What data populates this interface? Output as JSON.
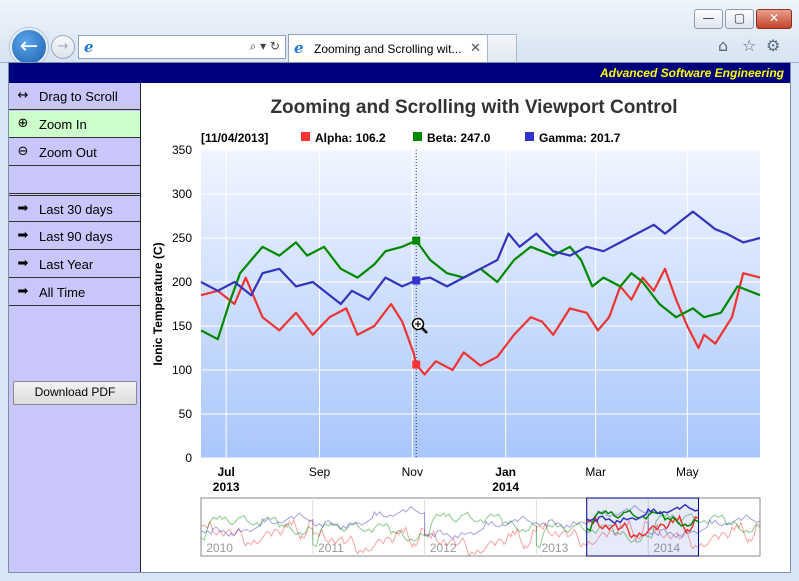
{
  "browser": {
    "tab_title": "Zooming and Scrolling wit...",
    "tab_close": "✕",
    "min": "—",
    "max": "▢",
    "close": "✕",
    "address_tools": "⌕ ▾ ↻"
  },
  "banner": {
    "text": "Advanced Software Engineering"
  },
  "sidebar": {
    "items": [
      {
        "label": "Drag to Scroll",
        "icon": "↔"
      },
      {
        "label": "Zoom In",
        "icon": "⊕"
      },
      {
        "label": "Zoom Out",
        "icon": "⊖"
      },
      {
        "label": "Last 30 days",
        "icon": "➡"
      },
      {
        "label": "Last 90 days",
        "icon": "➡"
      },
      {
        "label": "Last Year",
        "icon": "➡"
      },
      {
        "label": "All Time",
        "icon": "➡"
      }
    ],
    "pdf_button": "Download PDF"
  },
  "chart_data": {
    "type": "line",
    "title": "Zooming and Scrolling with Viewport Control",
    "ylabel": "Ionic Temperature (C)",
    "ylim": [
      0,
      350
    ],
    "yticks": [
      0,
      50,
      100,
      150,
      200,
      250,
      300,
      350
    ],
    "x_ticks": [
      {
        "label": "Jul",
        "sub": "2013",
        "t": 0.045
      },
      {
        "label": "Sep",
        "t": 0.212
      },
      {
        "label": "Nov",
        "t": 0.378
      },
      {
        "label": "Jan",
        "sub": "2014",
        "t": 0.545
      },
      {
        "label": "Mar",
        "t": 0.706
      },
      {
        "label": "May",
        "t": 0.87
      }
    ],
    "legend": {
      "date": "[11/04/2013]",
      "entries": [
        {
          "name": "Alpha",
          "value": "106.2",
          "color": "#ff3333"
        },
        {
          "name": "Beta",
          "value": "247.0",
          "color": "#008800"
        },
        {
          "name": "Gamma",
          "value": "201.7",
          "color": "#3333cc"
        }
      ]
    },
    "track_t": 0.385,
    "series": [
      {
        "name": "Alpha",
        "color": "#ee3333",
        "values": [
          [
            0,
            185
          ],
          [
            0.03,
            190
          ],
          [
            0.06,
            175
          ],
          [
            0.08,
            205
          ],
          [
            0.11,
            160
          ],
          [
            0.14,
            145
          ],
          [
            0.17,
            165
          ],
          [
            0.2,
            140
          ],
          [
            0.23,
            160
          ],
          [
            0.26,
            170
          ],
          [
            0.28,
            140
          ],
          [
            0.31,
            150
          ],
          [
            0.34,
            175
          ],
          [
            0.36,
            155
          ],
          [
            0.38,
            120
          ],
          [
            0.385,
            106
          ],
          [
            0.4,
            95
          ],
          [
            0.42,
            110
          ],
          [
            0.45,
            100
          ],
          [
            0.47,
            120
          ],
          [
            0.5,
            105
          ],
          [
            0.53,
            115
          ],
          [
            0.56,
            140
          ],
          [
            0.59,
            160
          ],
          [
            0.61,
            155
          ],
          [
            0.63,
            140
          ],
          [
            0.66,
            170
          ],
          [
            0.69,
            165
          ],
          [
            0.71,
            145
          ],
          [
            0.73,
            160
          ],
          [
            0.75,
            195
          ],
          [
            0.77,
            180
          ],
          [
            0.79,
            205
          ],
          [
            0.81,
            190
          ],
          [
            0.83,
            215
          ],
          [
            0.85,
            180
          ],
          [
            0.87,
            150
          ],
          [
            0.89,
            125
          ],
          [
            0.9,
            140
          ],
          [
            0.92,
            130
          ],
          [
            0.95,
            160
          ],
          [
            0.97,
            210
          ],
          [
            1,
            205
          ]
        ]
      },
      {
        "name": "Beta",
        "color": "#008800",
        "values": [
          [
            0,
            145
          ],
          [
            0.03,
            135
          ],
          [
            0.05,
            175
          ],
          [
            0.07,
            210
          ],
          [
            0.09,
            225
          ],
          [
            0.11,
            240
          ],
          [
            0.14,
            230
          ],
          [
            0.17,
            245
          ],
          [
            0.19,
            230
          ],
          [
            0.22,
            240
          ],
          [
            0.25,
            215
          ],
          [
            0.28,
            205
          ],
          [
            0.31,
            220
          ],
          [
            0.33,
            235
          ],
          [
            0.36,
            240
          ],
          [
            0.385,
            247
          ],
          [
            0.41,
            225
          ],
          [
            0.44,
            210
          ],
          [
            0.47,
            205
          ],
          [
            0.5,
            215
          ],
          [
            0.53,
            200
          ],
          [
            0.56,
            225
          ],
          [
            0.59,
            240
          ],
          [
            0.61,
            235
          ],
          [
            0.63,
            230
          ],
          [
            0.66,
            240
          ],
          [
            0.68,
            225
          ],
          [
            0.7,
            195
          ],
          [
            0.72,
            205
          ],
          [
            0.75,
            195
          ],
          [
            0.77,
            210
          ],
          [
            0.79,
            200
          ],
          [
            0.82,
            175
          ],
          [
            0.85,
            160
          ],
          [
            0.88,
            170
          ],
          [
            0.9,
            160
          ],
          [
            0.93,
            165
          ],
          [
            0.96,
            195
          ],
          [
            1,
            185
          ]
        ]
      },
      {
        "name": "Gamma",
        "color": "#3333bb",
        "values": [
          [
            0,
            200
          ],
          [
            0.03,
            190
          ],
          [
            0.06,
            200
          ],
          [
            0.09,
            185
          ],
          [
            0.11,
            210
          ],
          [
            0.14,
            215
          ],
          [
            0.17,
            195
          ],
          [
            0.2,
            200
          ],
          [
            0.23,
            185
          ],
          [
            0.25,
            175
          ],
          [
            0.27,
            190
          ],
          [
            0.3,
            180
          ],
          [
            0.33,
            205
          ],
          [
            0.36,
            195
          ],
          [
            0.385,
            202
          ],
          [
            0.41,
            205
          ],
          [
            0.44,
            195
          ],
          [
            0.47,
            205
          ],
          [
            0.5,
            215
          ],
          [
            0.53,
            225
          ],
          [
            0.55,
            255
          ],
          [
            0.57,
            240
          ],
          [
            0.6,
            255
          ],
          [
            0.63,
            235
          ],
          [
            0.66,
            230
          ],
          [
            0.69,
            240
          ],
          [
            0.72,
            235
          ],
          [
            0.75,
            245
          ],
          [
            0.78,
            255
          ],
          [
            0.81,
            265
          ],
          [
            0.83,
            255
          ],
          [
            0.86,
            270
          ],
          [
            0.88,
            280
          ],
          [
            0.9,
            270
          ],
          [
            0.92,
            260
          ],
          [
            0.94,
            255
          ],
          [
            0.97,
            245
          ],
          [
            1,
            250
          ]
        ]
      }
    ],
    "overview": {
      "years": [
        "2010",
        "2011",
        "2012",
        "2013",
        "2014"
      ],
      "window": [
        0.69,
        0.89
      ]
    }
  }
}
